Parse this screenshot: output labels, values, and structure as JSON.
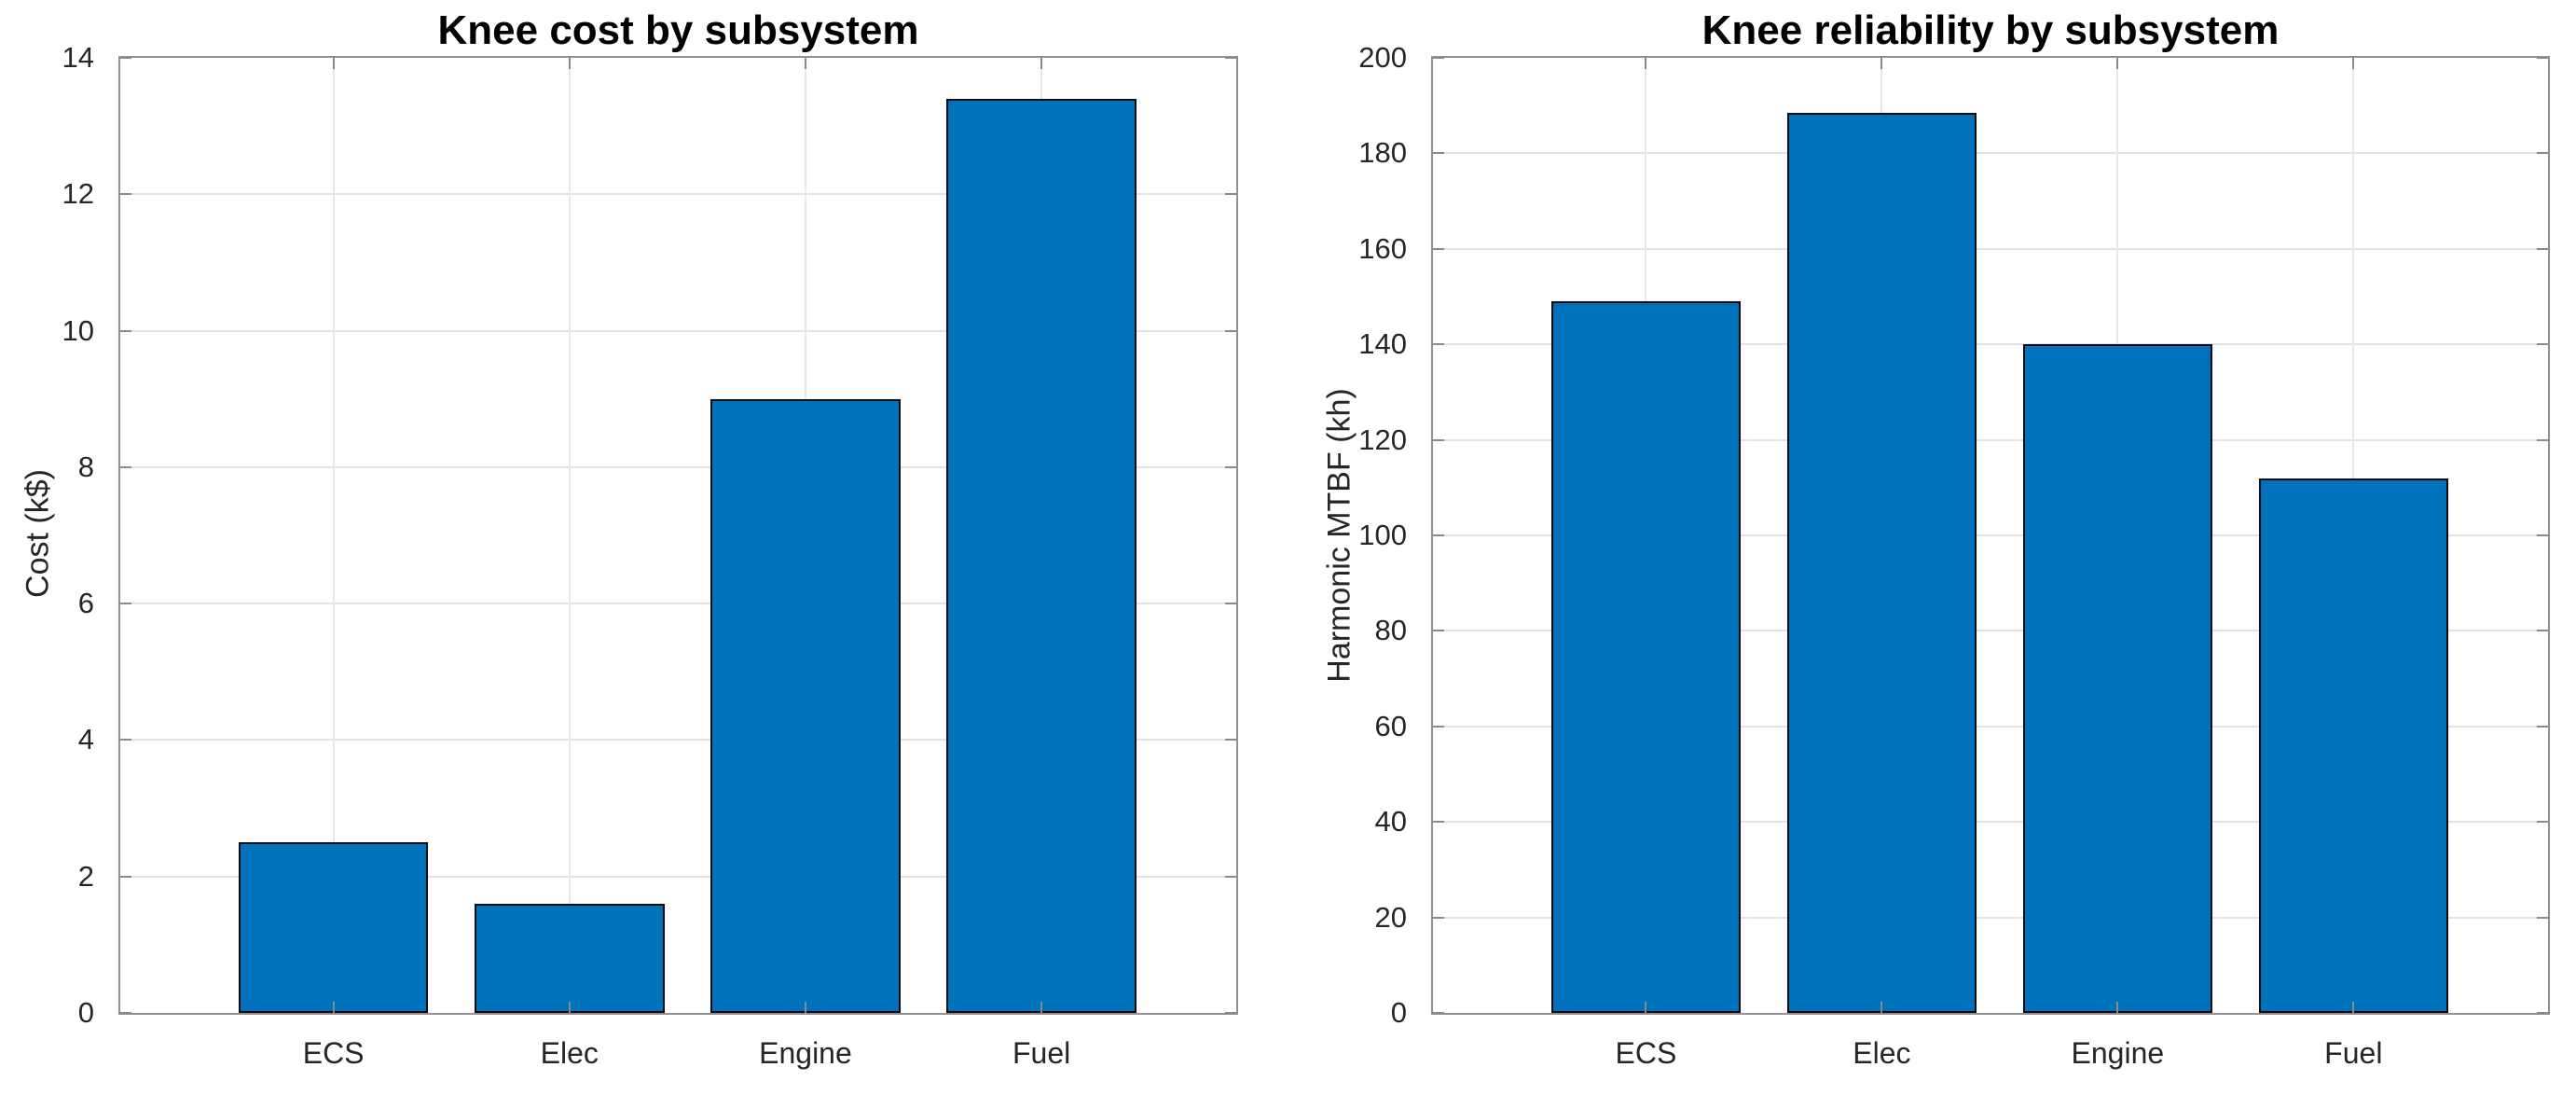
{
  "figure": {
    "background": "#ffffff",
    "panels": 2
  },
  "chart_data": [
    {
      "type": "bar",
      "title": "Knee cost by subsystem",
      "xlabel": "",
      "ylabel": "Cost (k$)",
      "categories": [
        "ECS",
        "Elec",
        "Engine",
        "Fuel"
      ],
      "values": [
        2.5,
        1.6,
        9.0,
        13.4
      ],
      "ylim": [
        0,
        14
      ],
      "yticks": [
        0,
        2,
        4,
        6,
        8,
        10,
        12,
        14
      ],
      "grid": "on",
      "legend": "none",
      "bar_color": "#0072BD",
      "bar_edge_color": "#0a0a0a"
    },
    {
      "type": "bar",
      "title": "Knee reliability by subsystem",
      "xlabel": "",
      "ylabel": "Harmonic MTBF (kh)",
      "categories": [
        "ECS",
        "Elec",
        "Engine",
        "Fuel"
      ],
      "values": [
        149,
        188.5,
        140,
        112
      ],
      "ylim": [
        0,
        200
      ],
      "yticks": [
        0,
        20,
        40,
        60,
        80,
        100,
        120,
        140,
        160,
        180,
        200
      ],
      "grid": "on",
      "legend": "none",
      "bar_color": "#0072BD",
      "bar_edge_color": "#0a0a0a"
    }
  ],
  "styles": {
    "axis_box_color": "#909090",
    "grid_color": "#e3e3e3",
    "tick_mark_color": "#8a8a8a",
    "tick_label_color": "#262626",
    "title_color": "#000000"
  }
}
